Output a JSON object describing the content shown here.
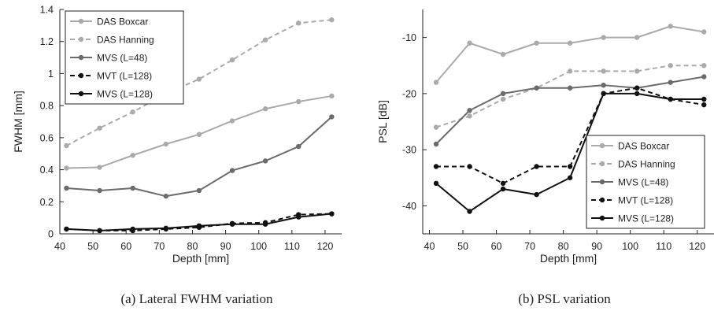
{
  "chart_data": [
    {
      "type": "line",
      "caption": "(a) Lateral FWHM variation",
      "xlabel": "Depth [mm]",
      "ylabel": "FWHM [mm]",
      "xlim": [
        40,
        125
      ],
      "ylim": [
        0,
        1.4
      ],
      "xticks": [
        "40",
        "50",
        "60",
        "70",
        "80",
        "90",
        "100",
        "110",
        "120"
      ],
      "xtick_values": [
        40,
        50,
        60,
        70,
        80,
        90,
        100,
        110,
        120
      ],
      "yticks": [
        "0",
        "0.2",
        "0.4",
        "0.6",
        "0.8",
        "1",
        "1.2",
        "1.4"
      ],
      "ytick_values": [
        0,
        0.2,
        0.4,
        0.6,
        0.8,
        1.0,
        1.2,
        1.4
      ],
      "legend_position": "top-left",
      "grid": false,
      "x": [
        42,
        52,
        62,
        72,
        82,
        92,
        102,
        112,
        122
      ],
      "series": [
        {
          "name": "DAS Boxcar",
          "color": "#aaaaaa",
          "dash": "solid",
          "values": [
            0.41,
            0.415,
            0.49,
            0.56,
            0.62,
            0.705,
            0.78,
            0.825,
            0.86
          ]
        },
        {
          "name": "DAS Hanning",
          "color": "#aaaaaa",
          "dash": "dashed",
          "values": [
            0.55,
            0.66,
            0.76,
            0.875,
            0.965,
            1.085,
            1.21,
            1.315,
            1.335
          ]
        },
        {
          "name": "MVS (L=48)",
          "color": "#6b6b6b",
          "dash": "solid",
          "values": [
            0.285,
            0.27,
            0.285,
            0.235,
            0.27,
            0.395,
            0.455,
            0.545,
            0.73
          ]
        },
        {
          "name": "MVT (L=128)",
          "color": "#111111",
          "dash": "dashed",
          "values": [
            0.03,
            0.02,
            0.02,
            0.03,
            0.04,
            0.065,
            0.07,
            0.12,
            0.125
          ]
        },
        {
          "name": "MVS (L=128)",
          "color": "#111111",
          "dash": "solid",
          "values": [
            0.03,
            0.02,
            0.03,
            0.035,
            0.05,
            0.06,
            0.06,
            0.105,
            0.125
          ]
        }
      ]
    },
    {
      "type": "line",
      "caption": "(b) PSL variation",
      "xlabel": "Depth [mm]",
      "ylabel": "PSL [dB]",
      "xlim": [
        38,
        125
      ],
      "ylim": [
        -45,
        -5
      ],
      "xticks": [
        "40",
        "50",
        "60",
        "70",
        "80",
        "90",
        "100",
        "110",
        "120"
      ],
      "xtick_values": [
        40,
        50,
        60,
        70,
        80,
        90,
        100,
        110,
        120
      ],
      "yticks": [
        "-40",
        "-30",
        "-20",
        "-10"
      ],
      "ytick_values": [
        -40,
        -30,
        -20,
        -10
      ],
      "legend_position": "bottom-right",
      "grid": false,
      "x": [
        42,
        52,
        62,
        72,
        82,
        92,
        102,
        112,
        122
      ],
      "series": [
        {
          "name": "DAS Boxcar",
          "color": "#aaaaaa",
          "dash": "solid",
          "values": [
            -18,
            -11,
            -13,
            -11,
            -11,
            -10,
            -10,
            -8,
            -9
          ]
        },
        {
          "name": "DAS Hanning",
          "color": "#aaaaaa",
          "dash": "dashed",
          "values": [
            -26,
            -24,
            -21,
            -19,
            -16,
            -16,
            -16,
            -15,
            -15
          ]
        },
        {
          "name": "MVS (L=48)",
          "color": "#6b6b6b",
          "dash": "solid",
          "values": [
            -29,
            -23,
            -20,
            -19,
            -19,
            -18.5,
            -19,
            -18,
            -17
          ]
        },
        {
          "name": "MVT (L=128)",
          "color": "#111111",
          "dash": "dashed",
          "values": [
            -33,
            -33,
            -36,
            -33,
            -33,
            -20,
            -19,
            -21,
            -22
          ]
        },
        {
          "name": "MVS (L=128)",
          "color": "#111111",
          "dash": "solid",
          "values": [
            -36,
            -41,
            -37,
            -38,
            -35,
            -20,
            -20,
            -21,
            -21
          ]
        }
      ]
    }
  ]
}
